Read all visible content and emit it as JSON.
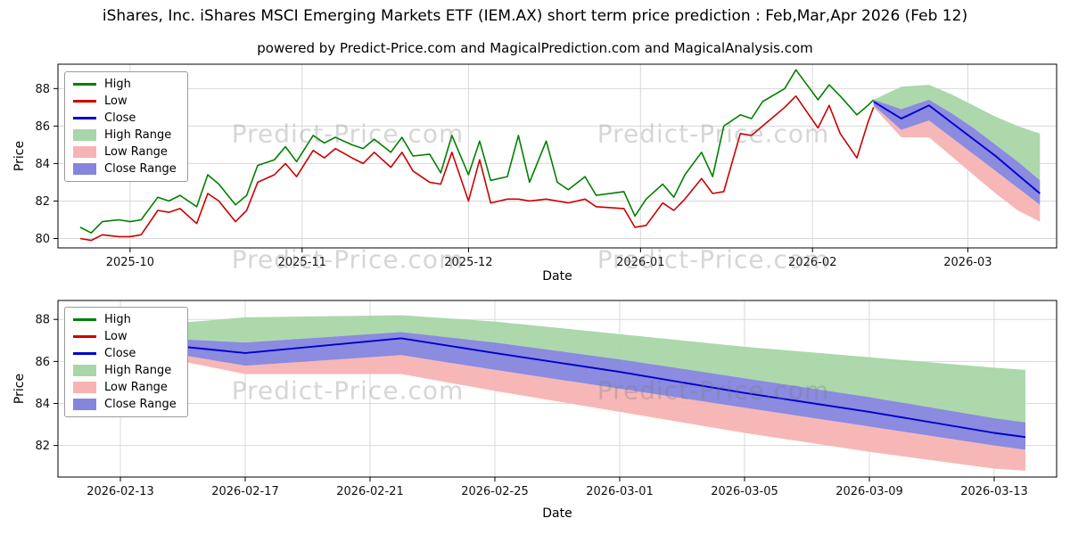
{
  "title": "iShares, Inc. iShares MSCI Emerging Markets ETF (IEM.AX) short term price prediction : Feb,Mar,Apr 2026 (Feb 12)",
  "subtitle": "powered by Predict-Price.com and MagicalPrediction.com and MagicalAnalysis.com",
  "watermark": "Predict-Price.com",
  "colors": {
    "high": "#008000",
    "low": "#cc0000",
    "close": "#0000cc",
    "high_range": "#a8d6a8",
    "low_range": "#f7b3b3",
    "close_range": "#8585dd",
    "grid": "#d9d9d9",
    "axis": "#000000"
  },
  "legend": {
    "items": [
      {
        "label": "High",
        "swatch": "line",
        "color": "#008000"
      },
      {
        "label": "Low",
        "swatch": "line",
        "color": "#cc0000"
      },
      {
        "label": "Close",
        "swatch": "line",
        "color": "#0000cc"
      },
      {
        "label": "High Range",
        "swatch": "patch",
        "color": "#a8d6a8"
      },
      {
        "label": "Low Range",
        "swatch": "patch",
        "color": "#f7b3b3"
      },
      {
        "label": "Close Range",
        "swatch": "patch",
        "color": "#8585dd"
      }
    ]
  },
  "chart_data": [
    {
      "type": "line",
      "title": "",
      "xlabel": "Date",
      "ylabel": "Price",
      "ylim": [
        79.5,
        89.3
      ],
      "yticks": [
        80,
        82,
        84,
        86,
        88
      ],
      "xlim": [
        "2025-09-18",
        "2026-03-17"
      ],
      "grid": true,
      "legend_position": "upper left",
      "xticks": [
        {
          "label": "2025-10",
          "date": "2025-10-01"
        },
        {
          "label": "2025-11",
          "date": "2025-11-01"
        },
        {
          "label": "2025-12",
          "date": "2025-12-01"
        },
        {
          "label": "2026-01",
          "date": "2026-01-01"
        },
        {
          "label": "2026-02",
          "date": "2026-02-01"
        },
        {
          "label": "2026-03",
          "date": "2026-03-01"
        }
      ],
      "series": {
        "dates": [
          "2025-09-22",
          "2025-09-24",
          "2025-09-26",
          "2025-09-29",
          "2025-10-01",
          "2025-10-03",
          "2025-10-06",
          "2025-10-08",
          "2025-10-10",
          "2025-10-13",
          "2025-10-15",
          "2025-10-17",
          "2025-10-20",
          "2025-10-22",
          "2025-10-24",
          "2025-10-27",
          "2025-10-29",
          "2025-10-31",
          "2025-11-03",
          "2025-11-05",
          "2025-11-07",
          "2025-11-10",
          "2025-11-12",
          "2025-11-14",
          "2025-11-17",
          "2025-11-19",
          "2025-11-21",
          "2025-11-24",
          "2025-11-26",
          "2025-11-28",
          "2025-12-01",
          "2025-12-03",
          "2025-12-05",
          "2025-12-08",
          "2025-12-10",
          "2025-12-12",
          "2025-12-15",
          "2025-12-17",
          "2025-12-19",
          "2025-12-22",
          "2025-12-24",
          "2025-12-29",
          "2025-12-31",
          "2026-01-02",
          "2026-01-05",
          "2026-01-07",
          "2026-01-09",
          "2026-01-12",
          "2026-01-14",
          "2026-01-16",
          "2026-01-19",
          "2026-01-21",
          "2026-01-23",
          "2026-01-27",
          "2026-01-29",
          "2026-02-02",
          "2026-02-04",
          "2026-02-06",
          "2026-02-09",
          "2026-02-11",
          "2026-02-12"
        ],
        "high": [
          80.6,
          80.3,
          80.9,
          81.0,
          80.9,
          81.0,
          82.2,
          82.0,
          82.3,
          81.7,
          83.4,
          82.9,
          81.8,
          82.3,
          83.9,
          84.2,
          84.9,
          84.1,
          85.5,
          85.1,
          85.4,
          85.0,
          84.8,
          85.3,
          84.6,
          85.4,
          84.4,
          84.5,
          83.5,
          85.5,
          83.4,
          85.2,
          83.1,
          83.3,
          85.5,
          83.0,
          85.2,
          83.0,
          82.6,
          83.3,
          82.3,
          82.5,
          81.2,
          82.1,
          82.9,
          82.2,
          83.4,
          84.6,
          83.3,
          86.0,
          86.6,
          86.4,
          87.3,
          88.0,
          89.0,
          87.4,
          88.2,
          87.6,
          86.6,
          87.1,
          87.4
        ],
        "low": [
          80.0,
          79.9,
          80.2,
          80.1,
          80.1,
          80.2,
          81.5,
          81.4,
          81.6,
          80.8,
          82.4,
          82.0,
          80.9,
          81.5,
          83.0,
          83.4,
          84.0,
          83.3,
          84.7,
          84.3,
          84.8,
          84.3,
          84.0,
          84.6,
          83.8,
          84.6,
          83.6,
          83.0,
          82.9,
          84.6,
          82.0,
          84.2,
          81.9,
          82.1,
          82.1,
          82.0,
          82.1,
          82.0,
          81.9,
          82.1,
          81.7,
          81.6,
          80.6,
          80.7,
          81.9,
          81.5,
          82.1,
          83.2,
          82.4,
          82.5,
          85.6,
          85.5,
          86.0,
          87.0,
          87.6,
          85.9,
          87.1,
          85.6,
          84.3,
          86.2,
          87.0
        ]
      },
      "forecast": {
        "dates": [
          "2026-02-12",
          "2026-02-17",
          "2026-02-22",
          "2026-02-26",
          "2026-03-02",
          "2026-03-06",
          "2026-03-10",
          "2026-03-14"
        ],
        "high_range_top": [
          87.4,
          88.1,
          88.2,
          87.7,
          87.1,
          86.5,
          86.0,
          85.6
        ],
        "close_range_top": [
          87.4,
          86.9,
          87.4,
          86.7,
          85.9,
          85.0,
          84.1,
          83.1
        ],
        "close": [
          87.3,
          86.4,
          87.1,
          86.2,
          85.3,
          84.4,
          83.4,
          82.4
        ],
        "close_range_bottom": [
          87.1,
          85.8,
          86.3,
          85.4,
          84.5,
          83.6,
          82.7,
          81.8
        ],
        "low_range_bottom": [
          87.0,
          85.4,
          85.4,
          84.4,
          83.4,
          82.4,
          81.5,
          80.9
        ]
      }
    },
    {
      "type": "area",
      "title": "",
      "xlabel": "Date",
      "ylabel": "Price",
      "ylim": [
        80.5,
        88.9
      ],
      "yticks": [
        82,
        84,
        86,
        88
      ],
      "xlim": [
        "2026-02-11",
        "2026-03-15"
      ],
      "grid": true,
      "legend_position": "upper left",
      "xticks": [
        {
          "label": "2026-02-13",
          "date": "2026-02-13"
        },
        {
          "label": "2026-02-17",
          "date": "2026-02-17"
        },
        {
          "label": "2026-02-21",
          "date": "2026-02-21"
        },
        {
          "label": "2026-02-25",
          "date": "2026-02-25"
        },
        {
          "label": "2026-03-01",
          "date": "2026-03-01"
        },
        {
          "label": "2026-03-05",
          "date": "2026-03-05"
        },
        {
          "label": "2026-03-09",
          "date": "2026-03-09"
        },
        {
          "label": "2026-03-13",
          "date": "2026-03-13"
        }
      ],
      "forecast": {
        "dates": [
          "2026-02-13",
          "2026-02-17",
          "2026-02-22",
          "2026-02-25",
          "2026-03-01",
          "2026-03-05",
          "2026-03-09",
          "2026-03-13",
          "2026-03-14"
        ],
        "high_range_top": [
          87.6,
          88.1,
          88.2,
          87.9,
          87.3,
          86.7,
          86.2,
          85.7,
          85.6
        ],
        "close_range_top": [
          87.2,
          86.9,
          87.4,
          86.9,
          86.1,
          85.2,
          84.3,
          83.3,
          83.1
        ],
        "close": [
          87.0,
          86.4,
          87.1,
          86.4,
          85.5,
          84.5,
          83.6,
          82.6,
          82.4
        ],
        "close_range_bottom": [
          86.8,
          85.8,
          86.3,
          85.6,
          84.7,
          83.8,
          82.9,
          82.0,
          81.8
        ],
        "low_range_bottom": [
          86.6,
          85.4,
          85.4,
          84.6,
          83.6,
          82.6,
          81.7,
          80.9,
          80.8
        ]
      }
    }
  ]
}
